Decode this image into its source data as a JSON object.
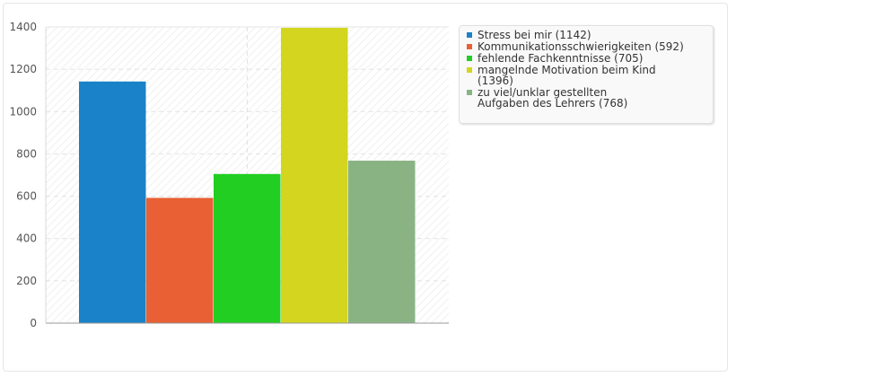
{
  "chart_data": {
    "type": "bar",
    "categories": [
      "Stress bei mir",
      "Kommunikationsschwierigkeiten",
      "fehlende Fachkenntnisse",
      "mangelnde Motivation beim Kind",
      "zu viel/unklar gestellten Aufgaben des Lehrers"
    ],
    "values": [
      1142,
      592,
      705,
      1396,
      768
    ],
    "colors": [
      "#1a82c8",
      "#e86034",
      "#22ce22",
      "#d3d51f",
      "#8ab384"
    ],
    "yticks": [
      "0",
      "200",
      "400",
      "600",
      "800",
      "1000",
      "1200",
      "1400"
    ],
    "ylim": [
      0,
      1400
    ],
    "grid": true,
    "legend_position": "right",
    "legend": [
      {
        "label": "Stress bei mir (1142)"
      },
      {
        "label": "Kommunikationsschwierigkeiten (592)"
      },
      {
        "label": "fehlende Fachkenntnisse (705)"
      },
      {
        "label": "mangelnde Motivation beim Kind (1396)"
      },
      {
        "label": "zu viel/unklar gestellten Aufgaben des Lehrers (768)"
      }
    ]
  }
}
